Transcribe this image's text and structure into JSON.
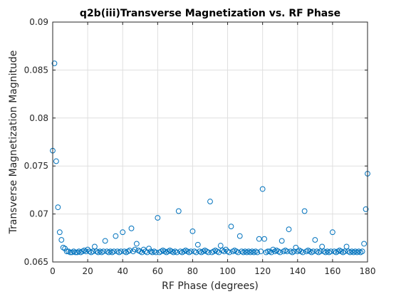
{
  "chart_data": {
    "type": "scatter",
    "title": "q2b(iii)Transverse Magnetization vs. RF Phase",
    "xlabel": "RF Phase (degrees)",
    "ylabel": "Transverse Magnetization Magnitude",
    "xlim": [
      0,
      180
    ],
    "ylim": [
      0.065,
      0.09
    ],
    "xticks": [
      0,
      20,
      40,
      60,
      80,
      100,
      120,
      140,
      160,
      180
    ],
    "xtick_labels": [
      "0",
      "20",
      "40",
      "60",
      "80",
      "100",
      "120",
      "140",
      "160",
      "180"
    ],
    "yticks": [
      0.065,
      0.07,
      0.075,
      0.08,
      0.085,
      0.09
    ],
    "ytick_labels": [
      "0.065",
      "0.07",
      "0.075",
      "0.08",
      "0.085",
      "0.09"
    ],
    "grid": true,
    "marker": "open-circle",
    "series_color": "#0072BD",
    "x": [
      0,
      1,
      2,
      3,
      4,
      5,
      6,
      7,
      8,
      9,
      10,
      11,
      12,
      13,
      14,
      15,
      16,
      17,
      18,
      19,
      20,
      21,
      22,
      23,
      24,
      25,
      26,
      27,
      28,
      29,
      30,
      31,
      32,
      33,
      34,
      35,
      36,
      37,
      38,
      39,
      40,
      41,
      42,
      43,
      44,
      45,
      46,
      47,
      48,
      49,
      50,
      51,
      52,
      53,
      54,
      55,
      56,
      57,
      58,
      59,
      60,
      61,
      62,
      63,
      64,
      65,
      66,
      67,
      68,
      69,
      70,
      71,
      72,
      73,
      74,
      75,
      76,
      77,
      78,
      79,
      80,
      81,
      82,
      83,
      84,
      85,
      86,
      87,
      88,
      89,
      90,
      91,
      92,
      93,
      94,
      95,
      96,
      97,
      98,
      99,
      100,
      101,
      102,
      103,
      104,
      105,
      106,
      107,
      108,
      109,
      110,
      111,
      112,
      113,
      114,
      115,
      116,
      117,
      118,
      119,
      120,
      121,
      122,
      123,
      124,
      125,
      126,
      127,
      128,
      129,
      130,
      131,
      132,
      133,
      134,
      135,
      136,
      137,
      138,
      139,
      140,
      141,
      142,
      143,
      144,
      145,
      146,
      147,
      148,
      149,
      150,
      151,
      152,
      153,
      154,
      155,
      156,
      157,
      158,
      159,
      160,
      161,
      162,
      163,
      164,
      165,
      166,
      167,
      168,
      169,
      170,
      171,
      172,
      173,
      174,
      175,
      176,
      177,
      178,
      179,
      180
    ],
    "y": [
      0.0766,
      0.0857,
      0.0755,
      0.0707,
      0.0681,
      0.0673,
      0.0665,
      0.0664,
      0.0661,
      0.0661,
      0.066,
      0.066,
      0.0661,
      0.066,
      0.066,
      0.0661,
      0.066,
      0.0661,
      0.0662,
      0.0661,
      0.0663,
      0.0661,
      0.066,
      0.0661,
      0.0666,
      0.0661,
      0.066,
      0.0661,
      0.066,
      0.0661,
      0.0672,
      0.0661,
      0.066,
      0.0661,
      0.066,
      0.0661,
      0.0677,
      0.0661,
      0.066,
      0.0661,
      0.0681,
      0.0661,
      0.066,
      0.0661,
      0.0662,
      0.0685,
      0.0661,
      0.0663,
      0.0669,
      0.0662,
      0.0661,
      0.066,
      0.0663,
      0.0661,
      0.066,
      0.0664,
      0.0661,
      0.066,
      0.0661,
      0.066,
      0.0696,
      0.066,
      0.0661,
      0.0662,
      0.0661,
      0.066,
      0.0661,
      0.0662,
      0.0661,
      0.066,
      0.0661,
      0.066,
      0.0703,
      0.0661,
      0.066,
      0.0661,
      0.0662,
      0.0661,
      0.066,
      0.0661,
      0.0682,
      0.0661,
      0.066,
      0.0668,
      0.0661,
      0.066,
      0.0661,
      0.0662,
      0.0661,
      0.066,
      0.0713,
      0.066,
      0.0661,
      0.0662,
      0.0661,
      0.066,
      0.0667,
      0.0662,
      0.0661,
      0.0663,
      0.0661,
      0.066,
      0.0687,
      0.0661,
      0.0662,
      0.0661,
      0.066,
      0.0677,
      0.0661,
      0.066,
      0.0661,
      0.066,
      0.0661,
      0.066,
      0.0661,
      0.066,
      0.0661,
      0.066,
      0.0674,
      0.0661,
      0.0726,
      0.0674,
      0.066,
      0.0661,
      0.0661,
      0.066,
      0.0663,
      0.0661,
      0.0662,
      0.0661,
      0.066,
      0.0672,
      0.0661,
      0.0662,
      0.0661,
      0.0684,
      0.0661,
      0.066,
      0.0661,
      0.0665,
      0.0661,
      0.0662,
      0.0661,
      0.066,
      0.0703,
      0.0661,
      0.0662,
      0.0661,
      0.066,
      0.0661,
      0.0673,
      0.0661,
      0.066,
      0.0661,
      0.0666,
      0.0661,
      0.066,
      0.0661,
      0.066,
      0.0661,
      0.0681,
      0.0661,
      0.066,
      0.0661,
      0.0662,
      0.0661,
      0.066,
      0.0661,
      0.0666,
      0.0661,
      0.066,
      0.0661,
      0.066,
      0.0661,
      0.066,
      0.0661,
      0.066,
      0.0661,
      0.0669,
      0.0705,
      0.0742
    ]
  }
}
